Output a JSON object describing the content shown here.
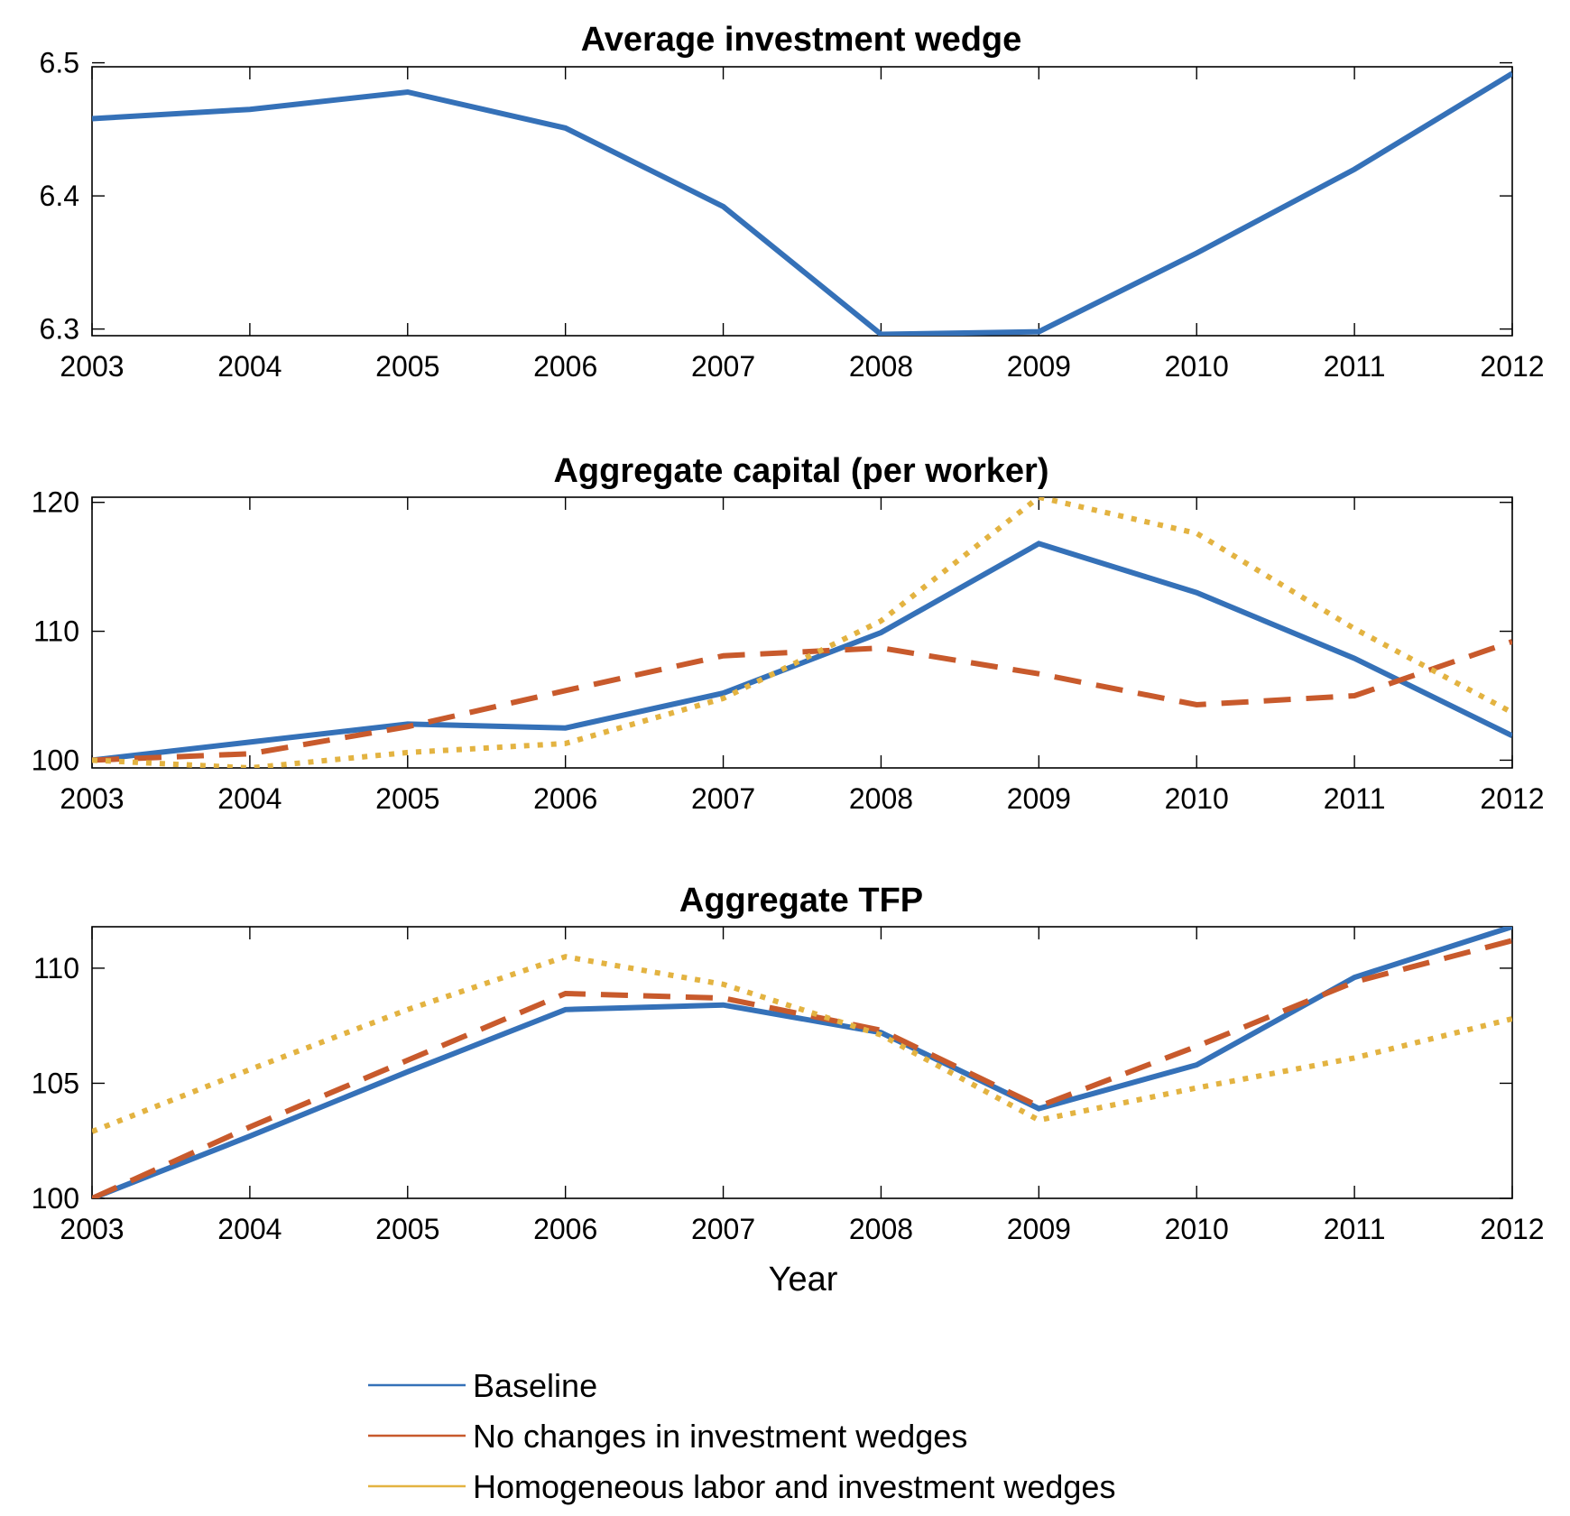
{
  "colors": {
    "baseline": "#3571b8",
    "no_change": "#c85a2c",
    "homogeneous": "#e3b341"
  },
  "chart_data": [
    {
      "type": "line",
      "title": "Average investment wedge",
      "xlabel": "",
      "ylabel": "",
      "x": [
        2003,
        2004,
        2005,
        2006,
        2007,
        2008,
        2009,
        2010,
        2011,
        2012
      ],
      "xlim": [
        2003,
        2012
      ],
      "ylim": [
        6.295,
        6.497
      ],
      "yticks": [
        6.3,
        6.4,
        6.5
      ],
      "ytick_labels": [
        "6.3",
        "6.4",
        "6.5"
      ],
      "series": [
        {
          "name": "Baseline",
          "style": "solid",
          "color": "#3571b8",
          "values": [
            6.458,
            6.465,
            6.478,
            6.451,
            6.392,
            6.296,
            6.298,
            6.357,
            6.42,
            6.492
          ]
        }
      ]
    },
    {
      "type": "line",
      "title": "Aggregate capital (per worker)",
      "xlabel": "",
      "ylabel": "",
      "x": [
        2003,
        2004,
        2005,
        2006,
        2007,
        2008,
        2009,
        2010,
        2011,
        2012
      ],
      "xlim": [
        2003,
        2012
      ],
      "ylim": [
        99.4,
        120.4
      ],
      "yticks": [
        100,
        110,
        120
      ],
      "ytick_labels": [
        "100",
        "110",
        "120"
      ],
      "series": [
        {
          "name": "Baseline",
          "style": "solid",
          "color": "#3571b8",
          "values": [
            100.0,
            101.4,
            102.8,
            102.5,
            105.2,
            109.9,
            116.8,
            113.0,
            107.9,
            101.9
          ]
        },
        {
          "name": "No changes in investment wedges",
          "style": "dashed",
          "color": "#c85a2c",
          "values": [
            100.0,
            100.5,
            102.6,
            105.4,
            108.1,
            108.7,
            106.7,
            104.3,
            105.0,
            109.2
          ]
        },
        {
          "name": "Homogeneous labor and investment wedges",
          "style": "dotted",
          "color": "#e3b341",
          "values": [
            100.0,
            99.4,
            100.6,
            101.3,
            104.8,
            110.8,
            120.4,
            117.6,
            110.2,
            103.7
          ]
        }
      ]
    },
    {
      "type": "line",
      "title": "Aggregate TFP",
      "xlabel": "Year",
      "ylabel": "",
      "x": [
        2003,
        2004,
        2005,
        2006,
        2007,
        2008,
        2009,
        2010,
        2011,
        2012
      ],
      "xlim": [
        2003,
        2012
      ],
      "ylim": [
        100,
        111.8
      ],
      "yticks": [
        100,
        105,
        110
      ],
      "ytick_labels": [
        "100",
        "105",
        "110"
      ],
      "series": [
        {
          "name": "Baseline",
          "style": "solid",
          "color": "#3571b8",
          "values": [
            100.0,
            102.7,
            105.5,
            108.2,
            108.4,
            107.2,
            103.9,
            105.8,
            109.6,
            111.8
          ]
        },
        {
          "name": "No changes in investment wedges",
          "style": "dashed",
          "color": "#c85a2c",
          "values": [
            100.0,
            103.1,
            106.0,
            108.9,
            108.7,
            107.3,
            104.0,
            106.6,
            109.4,
            111.2
          ]
        },
        {
          "name": "Homogeneous labor and investment wedges",
          "style": "dotted",
          "color": "#e3b341",
          "values": [
            102.9,
            105.6,
            108.2,
            110.5,
            109.3,
            107.1,
            103.4,
            104.8,
            106.1,
            107.8
          ]
        }
      ]
    }
  ],
  "legend": {
    "position": "bottom-center",
    "entries": [
      {
        "label": "Baseline",
        "color": "#3571b8"
      },
      {
        "label": "No changes in investment wedges",
        "color": "#c85a2c"
      },
      {
        "label": "Homogeneous labor and investment wedges",
        "color": "#e3b341"
      }
    ]
  }
}
